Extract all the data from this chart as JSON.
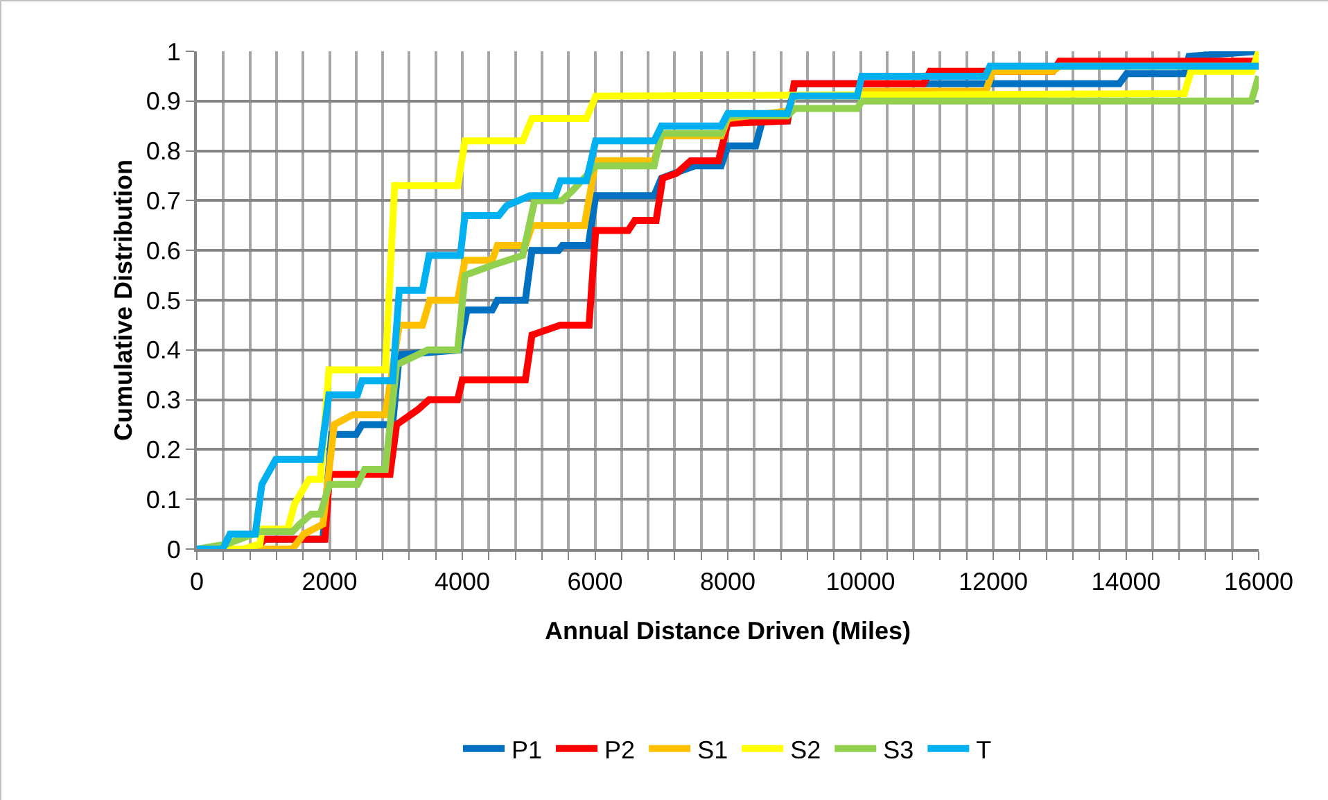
{
  "chart_data": {
    "type": "line",
    "xlabel": "Annual Distance Driven (Miles)",
    "ylabel": "Cumulative Distribution",
    "xlim": [
      0,
      16000
    ],
    "ylim": [
      0,
      1
    ],
    "xticks": [
      0,
      {
        "value": 400,
        "label": null
      },
      {
        "value": 800,
        "label": null
      },
      {
        "value": 1200,
        "label": null
      },
      {
        "value": 1600,
        "label": null
      },
      2000,
      {
        "value": 2400,
        "label": null
      },
      {
        "value": 2800,
        "label": null
      },
      {
        "value": 3200,
        "label": null
      },
      {
        "value": 3600,
        "label": null
      },
      4000,
      {
        "value": 4400,
        "label": null
      },
      {
        "value": 4800,
        "label": null
      },
      {
        "value": 5200,
        "label": null
      },
      {
        "value": 5600,
        "label": null
      },
      6000,
      {
        "value": 6400,
        "label": null
      },
      {
        "value": 6800,
        "label": null
      },
      {
        "value": 7200,
        "label": null
      },
      {
        "value": 7600,
        "label": null
      },
      8000,
      {
        "value": 8400,
        "label": null
      },
      {
        "value": 8800,
        "label": null
      },
      {
        "value": 9200,
        "label": null
      },
      {
        "value": 9600,
        "label": null
      },
      10000,
      {
        "value": 10400,
        "label": null
      },
      {
        "value": 10800,
        "label": null
      },
      {
        "value": 11200,
        "label": null
      },
      {
        "value": 11600,
        "label": null
      },
      12000,
      {
        "value": 12400,
        "label": null
      },
      {
        "value": 12800,
        "label": null
      },
      {
        "value": 13200,
        "label": null
      },
      {
        "value": 13600,
        "label": null
      },
      14000,
      {
        "value": 14400,
        "label": null
      },
      {
        "value": 14800,
        "label": null
      },
      {
        "value": 15200,
        "label": null
      },
      {
        "value": 15600,
        "label": null
      },
      16000
    ],
    "yticks": [
      0,
      0.1,
      0.2,
      0.3,
      0.4,
      0.5,
      0.6,
      0.7,
      0.8,
      0.9,
      1
    ],
    "grid": true,
    "legend": "bottom",
    "marker": "none",
    "line_style": "solid",
    "series": [
      {
        "name": "P1",
        "color": "#0070c0",
        "x": [
          0,
          900,
          1000,
          1900,
          2030,
          2400,
          2490,
          2950,
          3050,
          3950,
          4070,
          4450,
          4530,
          4950,
          5050,
          5450,
          5510,
          5900,
          6010,
          6890,
          7000,
          7200,
          7510,
          7900,
          8000,
          8420,
          8520,
          8900,
          9010,
          13900,
          14010,
          14880,
          14950,
          16000
        ],
        "values": [
          0,
          0,
          0.02,
          0.02,
          0.23,
          0.23,
          0.25,
          0.25,
          0.39,
          0.4,
          0.48,
          0.48,
          0.5,
          0.5,
          0.6,
          0.6,
          0.61,
          0.61,
          0.71,
          0.71,
          0.745,
          0.755,
          0.77,
          0.77,
          0.81,
          0.81,
          0.86,
          0.86,
          0.935,
          0.935,
          0.955,
          0.955,
          0.99,
          1
        ]
      },
      {
        "name": "P2",
        "color": "#ff0000",
        "x": [
          0,
          900,
          1020,
          1930,
          2000,
          2910,
          3010,
          3330,
          3500,
          3930,
          4000,
          4950,
          5050,
          5480,
          5910,
          6010,
          6500,
          6600,
          6920,
          7020,
          7230,
          7440,
          7860,
          8000,
          8900,
          9000,
          10950,
          11050,
          12900,
          13000,
          16000
        ],
        "values": [
          0,
          0,
          0.02,
          0.02,
          0.15,
          0.15,
          0.25,
          0.28,
          0.3,
          0.3,
          0.34,
          0.34,
          0.43,
          0.45,
          0.45,
          0.64,
          0.64,
          0.66,
          0.66,
          0.745,
          0.755,
          0.78,
          0.78,
          0.855,
          0.86,
          0.935,
          0.935,
          0.96,
          0.96,
          0.98,
          0.98
        ]
      },
      {
        "name": "S1",
        "color": "#ffc000",
        "x": [
          0,
          1440,
          1610,
          1900,
          2070,
          2350,
          2840,
          3050,
          3400,
          3510,
          3930,
          4040,
          4450,
          4530,
          4950,
          5050,
          5840,
          6010,
          6890,
          7000,
          7900,
          8000,
          8900,
          9000,
          9950,
          10020,
          11890,
          11990,
          12900,
          13000,
          16000
        ],
        "values": [
          0,
          0,
          0.03,
          0.05,
          0.25,
          0.27,
          0.27,
          0.45,
          0.45,
          0.5,
          0.5,
          0.58,
          0.58,
          0.61,
          0.61,
          0.65,
          0.65,
          0.78,
          0.78,
          0.83,
          0.83,
          0.865,
          0.88,
          0.91,
          0.91,
          0.92,
          0.92,
          0.96,
          0.96,
          0.97,
          0.97
        ]
      },
      {
        "name": "S2",
        "color": "#ffff00",
        "x": [
          0,
          700,
          950,
          980,
          1370,
          1470,
          1690,
          1860,
          1990,
          2840,
          2980,
          3930,
          4040,
          4910,
          5050,
          5870,
          6010,
          14880,
          14980,
          15900,
          16000
        ],
        "values": [
          0,
          0,
          0.01,
          0.04,
          0.04,
          0.09,
          0.14,
          0.14,
          0.36,
          0.36,
          0.73,
          0.73,
          0.82,
          0.82,
          0.865,
          0.865,
          0.91,
          0.915,
          0.96,
          0.96,
          1
        ]
      },
      {
        "name": "S3",
        "color": "#92d050",
        "x": [
          0,
          450,
          950,
          1440,
          1550,
          1720,
          1860,
          2000,
          2420,
          2530,
          2840,
          3010,
          3480,
          3930,
          4040,
          4450,
          4910,
          5090,
          5500,
          5660,
          6010,
          6890,
          7000,
          7900,
          8000,
          8900,
          9010,
          9950,
          10020,
          15890,
          16000
        ],
        "values": [
          0,
          0.01,
          0.035,
          0.035,
          0.05,
          0.07,
          0.07,
          0.13,
          0.13,
          0.16,
          0.16,
          0.37,
          0.4,
          0.4,
          0.55,
          0.57,
          0.59,
          0.7,
          0.7,
          0.72,
          0.77,
          0.77,
          0.835,
          0.835,
          0.87,
          0.87,
          0.885,
          0.885,
          0.9,
          0.9,
          0.95
        ]
      },
      {
        "name": "T",
        "color": "#00b0f0",
        "x": [
          0,
          390,
          500,
          880,
          980,
          1190,
          1860,
          1990,
          2420,
          2490,
          2950,
          3050,
          3400,
          3500,
          3970,
          4040,
          4550,
          4670,
          5020,
          5400,
          5480,
          5870,
          6010,
          6890,
          7000,
          7900,
          8000,
          8900,
          8980,
          9950,
          10020,
          11880,
          11950,
          16000
        ],
        "values": [
          0,
          0,
          0.03,
          0.03,
          0.13,
          0.18,
          0.18,
          0.31,
          0.31,
          0.338,
          0.338,
          0.52,
          0.52,
          0.59,
          0.59,
          0.67,
          0.67,
          0.69,
          0.71,
          0.71,
          0.74,
          0.74,
          0.82,
          0.82,
          0.85,
          0.85,
          0.875,
          0.875,
          0.91,
          0.91,
          0.95,
          0.95,
          0.97,
          0.97
        ]
      }
    ]
  }
}
